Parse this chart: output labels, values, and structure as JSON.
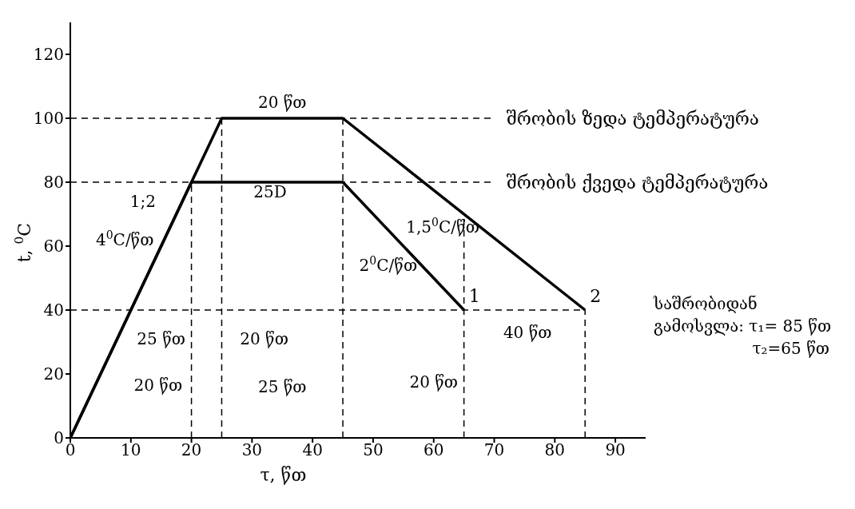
{
  "chart_data": {
    "type": "line",
    "xlabel": "τ, წთ",
    "ylabel": "t, $^{0}$C",
    "series": [
      {
        "name": "1",
        "color": "#000000",
        "x": [
          0,
          20,
          45,
          65
        ],
        "values": [
          0,
          80,
          80,
          40
        ]
      },
      {
        "name": "2",
        "color": "#000000",
        "x": [
          0,
          25,
          45,
          85
        ],
        "values": [
          0,
          100,
          100,
          40
        ]
      }
    ],
    "xlim": [
      0,
      95
    ],
    "xticks": [
      0,
      10,
      20,
      30,
      40,
      50,
      60,
      70,
      80,
      90
    ],
    "ylim": [
      0,
      130
    ],
    "yticks": [
      0,
      20,
      40,
      60,
      80,
      100,
      120
    ],
    "marker": "none",
    "line_style": "solid",
    "ref_lines": [
      {
        "axis": "y",
        "value": 100,
        "label": "შრობის ზედა ტემპერატურა",
        "line_style": "dashed",
        "color": "#000000"
      },
      {
        "axis": "y",
        "value": 80,
        "label": "შრობის ქვედა ტემპერატურა",
        "line_style": "dashed",
        "color": "#000000"
      },
      {
        "axis": "y",
        "value": 40,
        "label": null,
        "line_style": "dashed",
        "color": "#000000"
      },
      {
        "axis": "x",
        "value": 20,
        "label": null,
        "line_style": "dashed",
        "color": "#000000"
      },
      {
        "axis": "x",
        "value": 25,
        "label": null,
        "line_style": "dashed",
        "color": "#000000"
      },
      {
        "axis": "x",
        "value": 45,
        "label": null,
        "line_style": "dashed",
        "color": "#000000"
      },
      {
        "axis": "x",
        "value": 65,
        "label": null,
        "line_style": "dashed",
        "color": "#000000"
      },
      {
        "axis": "x",
        "value": 85,
        "label": null,
        "line_style": "dashed",
        "color": "#000000"
      }
    ],
    "annotations": [
      "20 წთ",
      "25D",
      "1;2",
      "4$^{0}$C/წთ",
      "2$^{0}$C/წთ",
      "1,5$^{0}$C/წთ",
      "25 წთ",
      "20 წთ",
      "40 წთ",
      "20 წთ",
      "25 წთ",
      "20 წთ",
      "საშრობიდან\nგამოსვლა: τ₁= 85 წთ\nτ₂=65 წთ"
    ]
  }
}
